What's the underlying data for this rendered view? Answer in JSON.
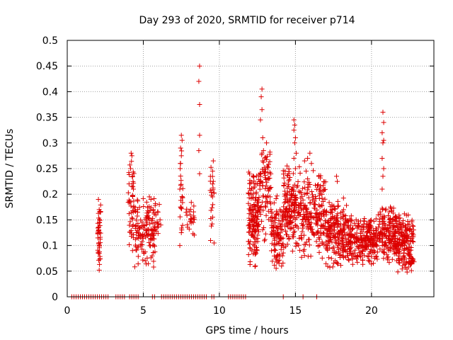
{
  "chart_data": {
    "type": "scatter",
    "title": "Day 293 of 2020, SRMTID for receiver p714",
    "xlabel": "GPS time / hours",
    "ylabel": "SRMTID / TECUs",
    "xlim": [
      0,
      24.1
    ],
    "ylim": [
      0,
      0.5
    ],
    "xticks": [
      0,
      5,
      10,
      15,
      20
    ],
    "yticks": [
      0,
      0.05,
      0.1,
      0.15,
      0.2,
      0.25,
      0.3,
      0.35,
      0.4,
      0.45,
      0.5
    ],
    "xtick_labels": [
      "0",
      "5",
      "10",
      "15",
      "20"
    ],
    "ytick_labels": [
      "0",
      "0.05",
      "0.1",
      "0.15",
      "0.2",
      "0.25",
      "0.3",
      "0.35",
      "0.4",
      "0.45",
      "0.5"
    ],
    "grid": true,
    "legend": "none",
    "marker": "+",
    "colors": {
      "series": "#dd0000",
      "grid": "#a0a0a0",
      "axes": "#000000"
    },
    "series": [
      {
        "name": "SRMTID",
        "clusters": [
          {
            "x_range": [
              2.0,
              2.2
            ],
            "y_range": [
              0.05,
              0.19
            ],
            "count": 40
          },
          {
            "x_range": [
              4.0,
              4.4
            ],
            "y_range": [
              0.08,
              0.28
            ],
            "count": 45
          },
          {
            "x_range": [
              4.4,
              5.8
            ],
            "y_range": [
              0.045,
              0.2
            ],
            "count": 140
          },
          {
            "x_range": [
              5.8,
              6.0
            ],
            "y_range": [
              0.12,
              0.18
            ],
            "count": 10
          },
          {
            "x_range": [
              7.4,
              7.6
            ],
            "y_range": [
              0.1,
              0.31
            ],
            "count": 20
          },
          {
            "x_range": [
              7.8,
              8.4
            ],
            "y_range": [
              0.11,
              0.2
            ],
            "count": 25
          },
          {
            "x_range": [
              9.4,
              9.7
            ],
            "y_range": [
              0.1,
              0.26
            ],
            "count": 20
          },
          {
            "x_range": [
              11.9,
              12.6
            ],
            "y_range": [
              0.05,
              0.25
            ],
            "count": 150
          },
          {
            "x_range": [
              12.6,
              13.4
            ],
            "y_range": [
              0.1,
              0.3
            ],
            "count": 80
          },
          {
            "x_range": [
              13.4,
              14.2
            ],
            "y_range": [
              0.045,
              0.2
            ],
            "count": 110
          },
          {
            "x_range": [
              14.2,
              15.4
            ],
            "y_range": [
              0.08,
              0.26
            ],
            "count": 180
          },
          {
            "x_range": [
              15.4,
              17.0
            ],
            "y_range": [
              0.07,
              0.25
            ],
            "count": 190
          },
          {
            "x_range": [
              17.0,
              18.4
            ],
            "y_range": [
              0.05,
              0.2
            ],
            "count": 200
          },
          {
            "x_range": [
              18.4,
              20.4
            ],
            "y_range": [
              0.06,
              0.16
            ],
            "count": 260
          },
          {
            "x_range": [
              20.4,
              21.6
            ],
            "y_range": [
              0.06,
              0.18
            ],
            "count": 160
          },
          {
            "x_range": [
              21.6,
              22.8
            ],
            "y_range": [
              0.04,
              0.17
            ],
            "count": 190
          }
        ],
        "points": [
          [
            2.05,
            0.19
          ],
          [
            2.1,
            0.17
          ],
          [
            2.15,
            0.165
          ],
          [
            2.12,
            0.145
          ],
          [
            2.08,
            0.105
          ],
          [
            2.1,
            0.085
          ],
          [
            2.12,
            0.063
          ],
          [
            2.1,
            0.052
          ],
          [
            4.2,
            0.28
          ],
          [
            4.25,
            0.275
          ],
          [
            4.3,
            0.235
          ],
          [
            4.35,
            0.21
          ],
          [
            5.4,
            0.195
          ],
          [
            5.5,
            0.19
          ],
          [
            6.1,
            0.15
          ],
          [
            6.15,
            0.14
          ],
          [
            6.05,
            0.18
          ],
          [
            7.5,
            0.315
          ],
          [
            7.55,
            0.305
          ],
          [
            7.45,
            0.29
          ],
          [
            7.5,
            0.275
          ],
          [
            7.45,
            0.26
          ],
          [
            7.4,
            0.21
          ],
          [
            7.45,
            0.175
          ],
          [
            7.5,
            0.125
          ],
          [
            7.4,
            0.1
          ],
          [
            8.7,
            0.45
          ],
          [
            8.65,
            0.42
          ],
          [
            8.7,
            0.375
          ],
          [
            8.7,
            0.315
          ],
          [
            8.65,
            0.285
          ],
          [
            8.7,
            0.24
          ],
          [
            9.6,
            0.265
          ],
          [
            9.55,
            0.245
          ],
          [
            9.6,
            0.225
          ],
          [
            9.55,
            0.195
          ],
          [
            9.65,
            0.105
          ],
          [
            12.8,
            0.405
          ],
          [
            12.75,
            0.39
          ],
          [
            12.8,
            0.365
          ],
          [
            12.7,
            0.345
          ],
          [
            12.85,
            0.31
          ],
          [
            12.9,
            0.285
          ],
          [
            12.8,
            0.28
          ],
          [
            12.85,
            0.265
          ],
          [
            13.1,
            0.3
          ],
          [
            13.15,
            0.255
          ],
          [
            13.2,
            0.23
          ],
          [
            13.3,
            0.21
          ],
          [
            14.9,
            0.345
          ],
          [
            14.95,
            0.335
          ],
          [
            14.9,
            0.325
          ],
          [
            15.0,
            0.31
          ],
          [
            14.95,
            0.3
          ],
          [
            15.05,
            0.28
          ],
          [
            14.9,
            0.27
          ],
          [
            15.0,
            0.25
          ],
          [
            15.6,
            0.265
          ],
          [
            15.8,
            0.27
          ],
          [
            15.95,
            0.28
          ],
          [
            15.7,
            0.245
          ],
          [
            16.05,
            0.26
          ],
          [
            17.7,
            0.235
          ],
          [
            17.75,
            0.225
          ],
          [
            20.75,
            0.36
          ],
          [
            20.8,
            0.34
          ],
          [
            20.7,
            0.32
          ],
          [
            20.8,
            0.305
          ],
          [
            20.75,
            0.3
          ],
          [
            20.7,
            0.27
          ],
          [
            20.8,
            0.25
          ],
          [
            20.75,
            0.235
          ],
          [
            20.7,
            0.21
          ]
        ]
      },
      {
        "name": "zero-level",
        "y": 0,
        "x_segments": [
          [
            0.3,
            2.8
          ],
          [
            3.2,
            3.8
          ],
          [
            4.1,
            4.7
          ],
          [
            5.6,
            5.8
          ],
          [
            6.2,
            9.2
          ],
          [
            9.5,
            9.7
          ],
          [
            10.6,
            11.8
          ],
          [
            14.2,
            14.3
          ],
          [
            15.5,
            15.6
          ],
          [
            16.4,
            16.5
          ]
        ],
        "spacing_hours": 0.14
      }
    ]
  }
}
